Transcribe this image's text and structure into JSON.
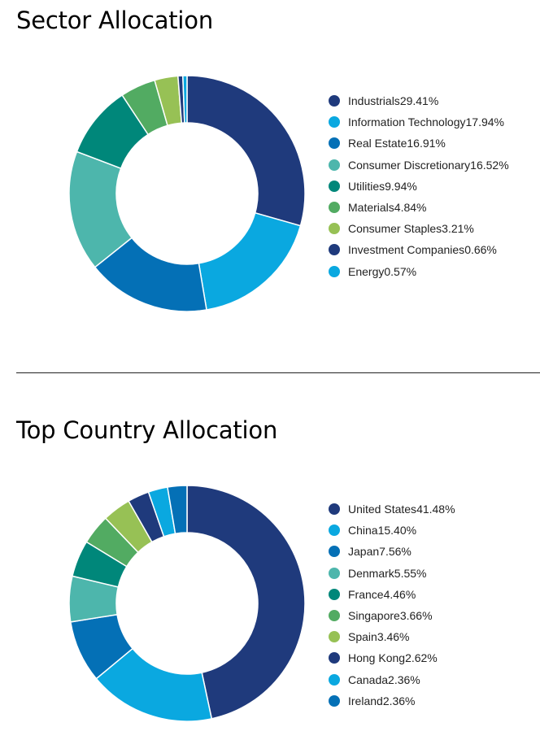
{
  "chart_data": [
    {
      "type": "pie",
      "title": "Sector Allocation",
      "donut": true,
      "legend_position": "right",
      "series": [
        {
          "name": "Industrials",
          "value": 29.41,
          "label": "29.41%",
          "color": "#1f3a7c"
        },
        {
          "name": "Information Technology",
          "value": 17.94,
          "label": "17.94%",
          "color": "#0aa8e0"
        },
        {
          "name": "Real Estate",
          "value": 16.91,
          "label": "16.91%",
          "color": "#0470b6"
        },
        {
          "name": "Consumer Discretionary",
          "value": 16.52,
          "label": "16.52%",
          "color": "#4db6ac"
        },
        {
          "name": "Utilities",
          "value": 9.94,
          "label": "9.94%",
          "color": "#00877a"
        },
        {
          "name": "Materials",
          "value": 4.84,
          "label": "4.84%",
          "color": "#52ab62"
        },
        {
          "name": "Consumer Staples",
          "value": 3.21,
          "label": "3.21%",
          "color": "#97c155"
        },
        {
          "name": "Investment Companies",
          "value": 0.66,
          "label": "0.66%",
          "color": "#1f3a7c"
        },
        {
          "name": "Energy",
          "value": 0.57,
          "label": "0.57%",
          "color": "#0aa8e0"
        }
      ]
    },
    {
      "type": "pie",
      "title": "Top Country Allocation",
      "donut": true,
      "legend_position": "right",
      "series": [
        {
          "name": "United States",
          "value": 41.48,
          "label": "41.48%",
          "color": "#1f3a7c"
        },
        {
          "name": "China",
          "value": 15.4,
          "label": "15.40%",
          "color": "#0aa8e0"
        },
        {
          "name": "Japan",
          "value": 7.56,
          "label": "7.56%",
          "color": "#0470b6"
        },
        {
          "name": "Denmark",
          "value": 5.55,
          "label": "5.55%",
          "color": "#4db6ac"
        },
        {
          "name": "France",
          "value": 4.46,
          "label": "4.46%",
          "color": "#00877a"
        },
        {
          "name": "Singapore",
          "value": 3.66,
          "label": "3.66%",
          "color": "#52ab62"
        },
        {
          "name": "Spain",
          "value": 3.46,
          "label": "3.46%",
          "color": "#97c155"
        },
        {
          "name": "Hong Kong",
          "value": 2.62,
          "label": "2.62%",
          "color": "#1f3a7c"
        },
        {
          "name": "Canada",
          "value": 2.36,
          "label": "2.36%",
          "color": "#0aa8e0"
        },
        {
          "name": "Ireland",
          "value": 2.36,
          "label": "2.36%",
          "color": "#0470b6"
        }
      ]
    }
  ]
}
